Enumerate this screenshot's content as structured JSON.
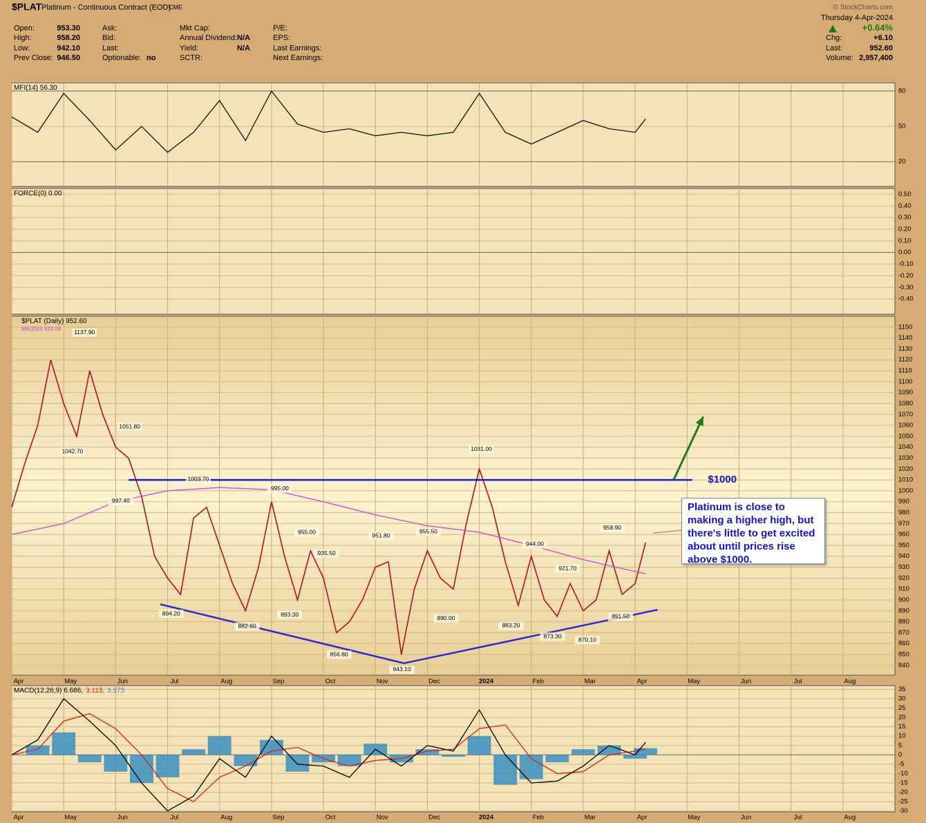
{
  "header": {
    "symbol": "$PLAT",
    "name": "Platinum - Continuous Contract (EOD)",
    "exchange": "CME",
    "watermark": "© StockCharts.com",
    "date": "Thursday  4-Apr-2024",
    "change_pct": "+0.64%",
    "columns": [
      [
        {
          "label": "Open:",
          "value": "953.30"
        },
        {
          "label": "High:",
          "value": "958.20"
        },
        {
          "label": "Low:",
          "value": "942.10"
        },
        {
          "label": "Prev Close:",
          "value": "946.50"
        }
      ],
      [
        {
          "label": "Ask:"
        },
        {
          "label": "Bid:"
        },
        {
          "label": "Last:"
        },
        {
          "label": "Optionable:",
          "value": "no"
        }
      ],
      [
        {
          "label": "Mkt Cap:"
        },
        {
          "label": "Annual Dividend:",
          "value": "N/A"
        },
        {
          "label": "Yield:",
          "value": "N/A"
        },
        {
          "label": "SCTR:"
        }
      ],
      [
        {
          "label": "P/E:"
        },
        {
          "label": "EPS:"
        },
        {
          "label": "Last Earnings:"
        },
        {
          "label": "Next Earnings:"
        }
      ]
    ],
    "right": [
      {
        "label": "Chg:",
        "value": "+6.10"
      },
      {
        "label": "Last:",
        "value": "952.60"
      },
      {
        "label": "Volume:",
        "value": "2,957,400"
      }
    ]
  },
  "chart_data": [
    {
      "type": "line",
      "legend": [
        {
          "text": "MFI(14) 56.30",
          "color": "#000000"
        }
      ],
      "x": [
        0,
        0.5,
        1,
        1.5,
        2,
        2.5,
        3,
        3.5,
        4,
        4.5,
        5,
        5.5,
        6,
        6.5,
        7,
        7.5,
        8,
        8.5,
        9,
        9.5,
        10,
        10.5,
        11,
        11.5,
        12,
        12.2
      ],
      "series": [
        {
          "name": "MFI(14)",
          "color": "#111111",
          "values": [
            58,
            45,
            78,
            55,
            30,
            50,
            28,
            45,
            72,
            38,
            80,
            52,
            45,
            48,
            42,
            45,
            42,
            45,
            78,
            45,
            35,
            45,
            55,
            48,
            45,
            56.3
          ]
        }
      ],
      "ylim": [
        -1,
        87
      ],
      "yticks": [
        80,
        50,
        20
      ]
    },
    {
      "type": "line",
      "legend": [
        {
          "text": "FORCE(0) 0.00",
          "color": "#000000"
        }
      ],
      "series": [],
      "ylim": [
        -0.53,
        0.55
      ],
      "yticks": [
        {
          "value": 0.5,
          "label": "0.50"
        },
        {
          "value": 0.4,
          "label": "0.40"
        },
        {
          "value": 0.3,
          "label": "0.30"
        },
        {
          "value": 0.2,
          "label": "0.20"
        },
        {
          "value": 0.1,
          "label": "0.10"
        },
        {
          "value": 0,
          "label": "0.00"
        },
        {
          "value": -0.1,
          "label": "-0.10"
        },
        {
          "value": -0.2,
          "label": "-0.20"
        },
        {
          "value": -0.3,
          "label": "-0.30"
        },
        {
          "value": -0.4,
          "label": "-0.40"
        }
      ]
    },
    {
      "type": "line",
      "legend": [
        {
          "text": "$PLAT (Daily) 952.60",
          "color": "#000000"
        },
        {
          "text": "MA(200) 924.06",
          "color": "#d43fd4"
        }
      ],
      "x": [
        0,
        0.25,
        0.5,
        0.75,
        1,
        1.25,
        1.5,
        1.75,
        2,
        2.25,
        2.5,
        2.75,
        3,
        3.25,
        3.5,
        3.75,
        4,
        4.25,
        4.5,
        4.75,
        5,
        5.25,
        5.5,
        5.75,
        6,
        6.25,
        6.5,
        6.75,
        7,
        7.25,
        7.5,
        7.75,
        8,
        8.25,
        8.5,
        8.75,
        9,
        9.25,
        9.5,
        9.75,
        10,
        10.25,
        10.5,
        10.75,
        11,
        11.25,
        11.5,
        11.75,
        12,
        12.2
      ],
      "series": [
        {
          "name": "$PLAT",
          "color": "#b0102a",
          "values": [
            985,
            1025,
            1060,
            1120,
            1080,
            1050,
            1110,
            1070,
            1040,
            1030,
            995,
            940,
            920,
            905,
            975,
            985,
            950,
            915,
            890,
            930,
            990,
            940,
            900,
            945,
            920,
            870,
            880,
            900,
            930,
            935,
            850,
            910,
            945,
            920,
            910,
            970,
            1020,
            985,
            935,
            895,
            940,
            900,
            885,
            915,
            890,
            900,
            945,
            905,
            915,
            952.6
          ]
        },
        {
          "name": "MA(200)",
          "color": "#d43fd4",
          "x": [
            0,
            1,
            2,
            3,
            4,
            5,
            6,
            7,
            8,
            9,
            10,
            11,
            12,
            12.2
          ],
          "values": [
            960,
            970,
            990,
            1000,
            1003,
            1001,
            990,
            978,
            968,
            962,
            950,
            937,
            926,
            924.06
          ]
        }
      ],
      "annotations": [
        {
          "label": "1137.90",
          "x": 1.4,
          "y": 1137.9,
          "placement": "above"
        },
        {
          "label": "1042.70",
          "x": 1.17,
          "y": 1042.7,
          "placement": "below"
        },
        {
          "label": "1051.80",
          "x": 2.27,
          "y": 1051.8,
          "placement": "above"
        },
        {
          "label": "997.40",
          "x": 2.1,
          "y": 997.4,
          "placement": "below"
        },
        {
          "label": "1003.70",
          "x": 3.59,
          "y": 1003.7,
          "placement": "above"
        },
        {
          "label": "894.20",
          "x": 3.07,
          "y": 894.2,
          "placement": "below"
        },
        {
          "label": "995.00",
          "x": 5.16,
          "y": 995,
          "placement": "above"
        },
        {
          "label": "882.60",
          "x": 4.53,
          "y": 882.6,
          "placement": "below"
        },
        {
          "label": "893.30",
          "x": 5.35,
          "y": 893.3,
          "placement": "below"
        },
        {
          "label": "955.00",
          "x": 5.68,
          "y": 955,
          "placement": "above"
        },
        {
          "label": "935.50",
          "x": 6.06,
          "y": 935.5,
          "placement": "above"
        },
        {
          "label": "856.80",
          "x": 6.3,
          "y": 856.8,
          "placement": "below"
        },
        {
          "label": "951.80",
          "x": 7.11,
          "y": 951.8,
          "placement": "above"
        },
        {
          "label": "843.10",
          "x": 7.51,
          "y": 843.1,
          "placement": "below"
        },
        {
          "label": "955.50",
          "x": 8.02,
          "y": 955.5,
          "placement": "above"
        },
        {
          "label": "890.00",
          "x": 8.36,
          "y": 890,
          "placement": "below"
        },
        {
          "label": "1031.00",
          "x": 9.04,
          "y": 1031,
          "placement": "above"
        },
        {
          "label": "883.20",
          "x": 9.61,
          "y": 883.2,
          "placement": "below"
        },
        {
          "label": "944.00",
          "x": 10.07,
          "y": 944,
          "placement": "above"
        },
        {
          "label": "921.70",
          "x": 10.7,
          "y": 921.7,
          "placement": "above"
        },
        {
          "label": "873.30",
          "x": 10.41,
          "y": 873.3,
          "placement": "below"
        },
        {
          "label": "870.10",
          "x": 11.08,
          "y": 870.1,
          "placement": "below"
        },
        {
          "label": "958.90",
          "x": 11.56,
          "y": 958.9,
          "placement": "above"
        },
        {
          "label": "891.50",
          "x": 11.72,
          "y": 891.5,
          "placement": "below"
        }
      ],
      "trendlines": [
        {
          "color": "#1a1acc",
          "points": [
            [
              2.25,
              1010
            ],
            [
              13.1,
              1010
            ]
          ]
        },
        {
          "color": "#2a2ad0",
          "points": [
            [
              2.86,
              896
            ],
            [
              7.55,
              842
            ],
            [
              12.43,
              891
            ]
          ]
        }
      ],
      "arrow": {
        "color": "#1f7a1f",
        "points": [
          [
            12.74,
            1010
          ],
          [
            13.31,
            1068
          ]
        ]
      },
      "level_label": {
        "text": "$1000",
        "x": 13.4,
        "y": 1010
      },
      "callout": "Platinum is close to making a higher high, but there's little to get excited about until prices rise above $1000.",
      "xlim": [
        0,
        17
      ],
      "xticks": [
        {
          "value": 0,
          "label": "Apr"
        },
        {
          "value": 1,
          "label": "May"
        },
        {
          "value": 2,
          "label": "Jun"
        },
        {
          "value": 3,
          "label": "Jul"
        },
        {
          "value": 4,
          "label": "Aug"
        },
        {
          "value": 5,
          "label": "Sep"
        },
        {
          "value": 6,
          "label": "Oct"
        },
        {
          "value": 7,
          "label": "Nov"
        },
        {
          "value": 8,
          "label": "Dec"
        },
        {
          "value": 9,
          "label": "2024"
        },
        {
          "value": 10,
          "label": "Feb"
        },
        {
          "value": 11,
          "label": "Mar"
        },
        {
          "value": 12,
          "label": "Apr"
        },
        {
          "value": 13,
          "label": "May"
        },
        {
          "value": 14,
          "label": "Jun"
        },
        {
          "value": 15,
          "label": "Jul"
        },
        {
          "value": 16,
          "label": "Aug"
        }
      ],
      "ylim": [
        831,
        1160
      ],
      "yticks": [
        1150,
        1140,
        1130,
        1120,
        1110,
        1100,
        1090,
        1080,
        1070,
        1060,
        1050,
        1040,
        1030,
        1020,
        1010,
        1000,
        990,
        980,
        970,
        960,
        950,
        940,
        930,
        920,
        910,
        900,
        890,
        880,
        870,
        860,
        850,
        840
      ]
    },
    {
      "type": "line",
      "legend": [
        {
          "text": "MACD(12,26,9) 6.686,",
          "color": "#000000"
        },
        {
          "text": "3.113,",
          "color": "#d42020"
        },
        {
          "text": "3.573",
          "color": "#3a8fc0"
        }
      ],
      "x": [
        0,
        0.5,
        1,
        1.5,
        2,
        2.5,
        3,
        3.5,
        4,
        4.5,
        5,
        5.5,
        6,
        6.5,
        7,
        7.5,
        8,
        8.5,
        9,
        9.5,
        10,
        10.5,
        11,
        11.5,
        12,
        12.2
      ],
      "series": [
        {
          "name": "Histogram",
          "type": "bar",
          "color": "#3a8fc0",
          "values": [
            0,
            5,
            12,
            -4,
            -9,
            -15,
            -12,
            3,
            10,
            -6,
            8,
            -9,
            -4,
            -6,
            6,
            -4,
            3,
            -1,
            10,
            -16,
            -13,
            -4,
            3,
            5,
            -2,
            3.573
          ]
        },
        {
          "name": "Signal",
          "color": "#d42020",
          "values": [
            0,
            3,
            18,
            22,
            14,
            0,
            -18,
            -25,
            -12,
            -6,
            2,
            4,
            -2,
            -6,
            -3,
            -2,
            2,
            3,
            14,
            16,
            -2,
            -10,
            -9,
            0,
            2,
            3.113
          ]
        },
        {
          "name": "MACD",
          "color": "#000000",
          "values": [
            0,
            8,
            30,
            18,
            5,
            -15,
            -30,
            -22,
            -2,
            -12,
            10,
            -5,
            -6,
            -12,
            3,
            -6,
            5,
            2,
            24,
            0,
            -15,
            -14,
            -6,
            5,
            0,
            6.686
          ]
        }
      ],
      "ylim": [
        -30.5,
        37
      ],
      "yticks": [
        35,
        30,
        25,
        20,
        15,
        10,
        5,
        0,
        -5,
        -10,
        -15,
        -20,
        -25,
        -30
      ]
    }
  ]
}
